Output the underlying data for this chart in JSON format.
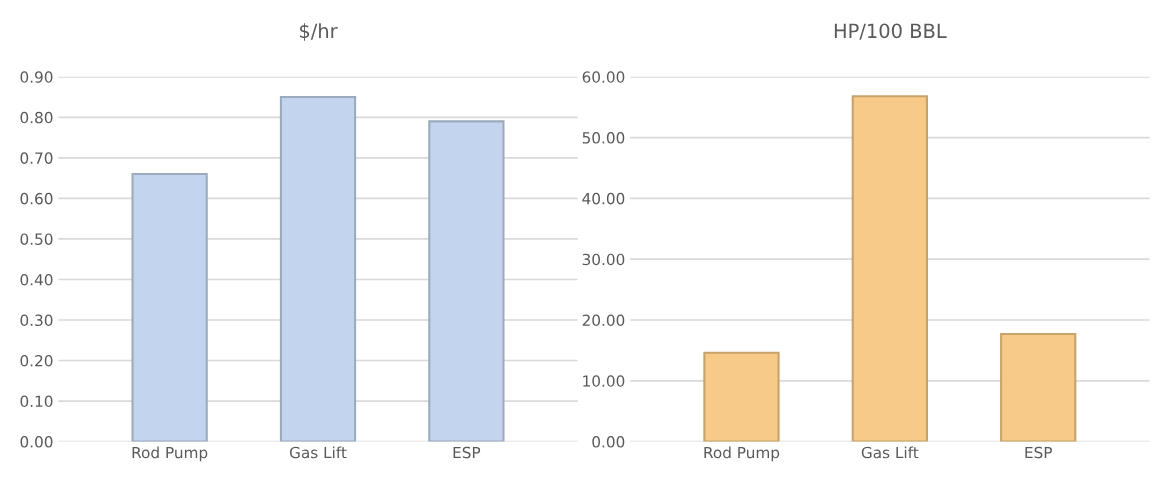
{
  "chart_data": [
    {
      "type": "bar",
      "title": "$/hr",
      "categories": [
        "Rod Pump",
        "Gas Lift",
        "ESP"
      ],
      "series": [
        {
          "color": "#c3d5ee",
          "values": [
            0.66,
            0.85,
            0.79
          ]
        }
      ],
      "ylim": [
        0,
        0.9
      ],
      "yticks": [
        {
          "value": 0,
          "label": "0.00"
        },
        {
          "value": 0.1,
          "label": "0.10"
        },
        {
          "value": 0.2,
          "label": "0.20"
        },
        {
          "value": 0.3,
          "label": "0.30"
        },
        {
          "value": 0.4,
          "label": "0.40"
        },
        {
          "value": 0.5,
          "label": "0.50"
        },
        {
          "value": 0.6,
          "label": "0.60"
        },
        {
          "value": 0.7,
          "label": "0.70"
        },
        {
          "value": 0.8,
          "label": "0.80"
        },
        {
          "value": 0.9,
          "label": "0.90"
        }
      ],
      "grid": "y",
      "legend": false
    },
    {
      "type": "bar",
      "title": "HP/100 BBL",
      "categories": [
        "Rod Pump",
        "Gas Lift",
        "ESP"
      ],
      "series": [
        {
          "color": "#f7cb87",
          "values": [
            14.6,
            56.8,
            17.7
          ]
        }
      ],
      "ylim": [
        0,
        60
      ],
      "yticks": [
        {
          "value": 0,
          "label": "0.00"
        },
        {
          "value": 10,
          "label": "10.00"
        },
        {
          "value": 20,
          "label": "20.00"
        },
        {
          "value": 30,
          "label": "30.00"
        },
        {
          "value": 40,
          "label": "40.00"
        },
        {
          "value": 50,
          "label": "50.00"
        },
        {
          "value": 60,
          "label": "60.00"
        }
      ],
      "grid": "y",
      "legend": false
    }
  ]
}
